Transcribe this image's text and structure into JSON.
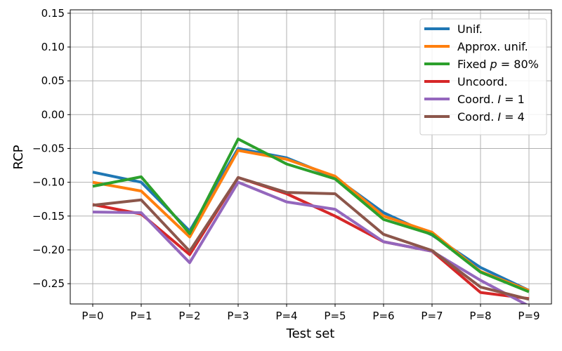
{
  "chart_data": {
    "type": "line",
    "title": "",
    "xlabel": "Test set",
    "ylabel": "RCP",
    "categories": [
      "P=0",
      "P=1",
      "P=2",
      "P=3",
      "P=4",
      "P=5",
      "P=6",
      "P=7",
      "P=8",
      "P=9"
    ],
    "ylim": [
      -0.28,
      0.155
    ],
    "yticks": [
      0.15,
      0.1,
      0.05,
      0.0,
      -0.05,
      -0.1,
      -0.15,
      -0.2,
      -0.25
    ],
    "ytick_labels": [
      "0.15",
      "0.10",
      "0.05",
      "0.00",
      "−0.05",
      "−0.10",
      "−0.15",
      "−0.20",
      "−0.25"
    ],
    "grid": true,
    "legend_position": "top-right",
    "series": [
      {
        "name": "Unif.",
        "legend_parts": [
          {
            "text": "Unif.",
            "italic": false
          }
        ],
        "color": "#1f77b4",
        "values": [
          -0.085,
          -0.1,
          -0.172,
          -0.05,
          -0.064,
          -0.093,
          -0.145,
          -0.178,
          -0.226,
          -0.26
        ]
      },
      {
        "name": "Approx. unif.",
        "legend_parts": [
          {
            "text": "Approx. unif.",
            "italic": false
          }
        ],
        "color": "#ff7f0e",
        "values": [
          -0.1,
          -0.113,
          -0.181,
          -0.053,
          -0.066,
          -0.091,
          -0.15,
          -0.174,
          -0.232,
          -0.26
        ]
      },
      {
        "name": "Fixed p = 80%",
        "legend_parts": [
          {
            "text": "Fixed ",
            "italic": false
          },
          {
            "text": "p",
            "italic": true
          },
          {
            "text": " = 80%",
            "italic": false
          }
        ],
        "color": "#2ca02c",
        "values": [
          -0.106,
          -0.092,
          -0.176,
          -0.036,
          -0.073,
          -0.095,
          -0.155,
          -0.177,
          -0.233,
          -0.262
        ]
      },
      {
        "name": "Uncoord.",
        "legend_parts": [
          {
            "text": "Uncoord.",
            "italic": false
          }
        ],
        "color": "#d62728",
        "values": [
          -0.133,
          -0.147,
          -0.207,
          -0.093,
          -0.117,
          -0.15,
          -0.188,
          -0.202,
          -0.263,
          -0.272
        ]
      },
      {
        "name": "Coord. I = 1",
        "legend_parts": [
          {
            "text": "Coord. ",
            "italic": false
          },
          {
            "text": "I",
            "italic": true
          },
          {
            "text": " = 1",
            "italic": false
          }
        ],
        "color": "#9467bd",
        "values": [
          -0.144,
          -0.145,
          -0.219,
          -0.1,
          -0.129,
          -0.14,
          -0.188,
          -0.202,
          -0.245,
          -0.283
        ]
      },
      {
        "name": "Coord. I = 4",
        "legend_parts": [
          {
            "text": "Coord. ",
            "italic": false
          },
          {
            "text": "I",
            "italic": true
          },
          {
            "text": " = 4",
            "italic": false
          }
        ],
        "color": "#8c564b",
        "values": [
          -0.134,
          -0.126,
          -0.202,
          -0.093,
          -0.115,
          -0.117,
          -0.177,
          -0.201,
          -0.255,
          -0.273
        ]
      }
    ]
  }
}
